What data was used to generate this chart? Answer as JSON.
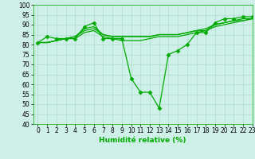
{
  "xlabel": "Humidité relative (%)",
  "background_color": "#cff0e8",
  "grid_color": "#aaddcc",
  "line_color": "#00aa00",
  "xlim": [
    -0.5,
    23
  ],
  "ylim": [
    40,
    100
  ],
  "yticks": [
    40,
    45,
    50,
    55,
    60,
    65,
    70,
    75,
    80,
    85,
    90,
    95,
    100
  ],
  "xticks": [
    0,
    1,
    2,
    3,
    4,
    5,
    6,
    7,
    8,
    9,
    10,
    11,
    12,
    13,
    14,
    15,
    16,
    17,
    18,
    19,
    20,
    21,
    22,
    23
  ],
  "lines": [
    {
      "x": [
        0,
        1,
        2,
        3,
        4,
        5,
        6,
        7,
        8,
        9,
        10,
        11,
        12,
        13,
        14,
        15,
        16,
        17,
        18,
        19,
        20,
        21,
        22,
        23
      ],
      "y": [
        81,
        84,
        83,
        83,
        83,
        89,
        91,
        83,
        83,
        83,
        63,
        56,
        56,
        48,
        75,
        77,
        80,
        86,
        86,
        91,
        93,
        93,
        94,
        94
      ],
      "marker": true
    },
    {
      "x": [
        0,
        1,
        2,
        3,
        4,
        5,
        6,
        7,
        8,
        9,
        10,
        11,
        12,
        13,
        14,
        15,
        16,
        17,
        18,
        19,
        20,
        21,
        22,
        23
      ],
      "y": [
        81,
        81,
        82,
        83,
        84,
        88,
        89,
        85,
        84,
        84,
        84,
        84,
        84,
        85,
        85,
        85,
        86,
        87,
        88,
        90,
        91,
        92,
        93,
        93
      ],
      "marker": false
    },
    {
      "x": [
        0,
        1,
        2,
        3,
        4,
        5,
        6,
        7,
        8,
        9,
        10,
        11,
        12,
        13,
        14,
        15,
        16,
        17,
        18,
        19,
        20,
        21,
        22,
        23
      ],
      "y": [
        81,
        81,
        82,
        83,
        84,
        87,
        88,
        85,
        84,
        84,
        84,
        84,
        84,
        85,
        85,
        85,
        86,
        87,
        87,
        90,
        91,
        92,
        92,
        93
      ],
      "marker": false
    },
    {
      "x": [
        0,
        1,
        2,
        3,
        4,
        5,
        6,
        7,
        8,
        9,
        10,
        11,
        12,
        13,
        14,
        15,
        16,
        17,
        18,
        19,
        20,
        21,
        22,
        23
      ],
      "y": [
        81,
        81,
        82,
        83,
        83,
        86,
        87,
        84,
        83,
        82,
        82,
        82,
        83,
        84,
        84,
        84,
        85,
        86,
        87,
        89,
        90,
        91,
        92,
        93
      ],
      "marker": false
    }
  ],
  "marker_style": "D",
  "markersize": 2.5,
  "linewidth": 0.9,
  "tick_fontsize": 5.5,
  "xlabel_fontsize": 6.5
}
